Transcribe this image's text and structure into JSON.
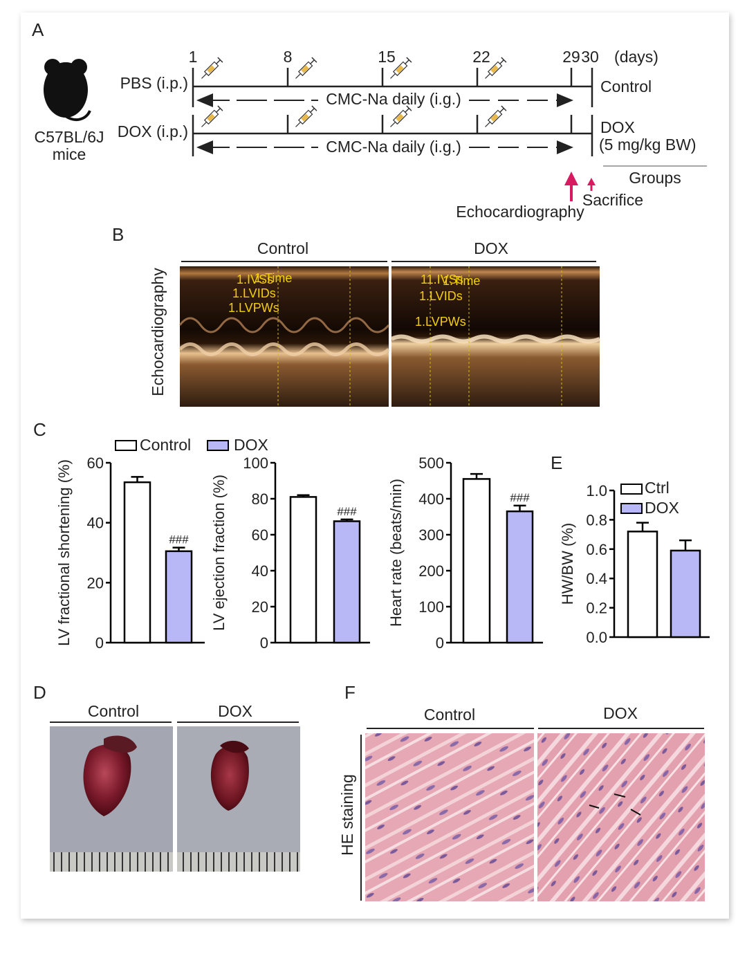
{
  "panels": {
    "a": "A",
    "b": "B",
    "c": "C",
    "d": "D",
    "e": "E",
    "f": "F"
  },
  "timeline": {
    "days": [
      "1",
      "8",
      "15",
      "22",
      "29",
      "30"
    ],
    "days_unit": "(days)",
    "mouse_label_line1": "C57BL/6J",
    "mouse_label_line2": "mice",
    "row1_treatment": "PBS (i.p.)",
    "row2_treatment": "DOX (i.p.)",
    "daily_label": "CMC-Na daily (i.g.)",
    "group_control": "Control",
    "group_dox_line1": "DOX",
    "group_dox_line2": "(5 mg/kg BW)",
    "groups_header": "Groups",
    "sacrifice_label": "Sacrifice",
    "echo_label": "Echocardiography",
    "arrow_color": "#d81b60",
    "icon": "syringe-icon"
  },
  "panel_b": {
    "col_control": "Control",
    "col_dox": "DOX",
    "row_label": "Echocardiography",
    "control_annotations": [
      "1.IVSs",
      "1.Time",
      "1.LVIDs",
      "1.LVPWs"
    ],
    "dox_annotations": [
      "11.IVSs",
      "1.Time",
      "1.LVIDs",
      "1.LVPWs"
    ],
    "annotation_color": "#f5d000"
  },
  "legend": {
    "control": "Control",
    "dox": "DOX"
  },
  "colors": {
    "control_fill": "#ffffff",
    "dox_fill": "#b9b8f7",
    "axis": "#000000"
  },
  "chart_data": [
    {
      "type": "bar",
      "ylabel": "LV fractional shortening (%)",
      "categories": [
        "Control",
        "DOX"
      ],
      "values": [
        53.5,
        30.5
      ],
      "errors": [
        1.8,
        1.2
      ],
      "ylim": [
        0,
        60
      ],
      "yticks": [
        0,
        20,
        40,
        60
      ],
      "annotations": [
        "",
        "###"
      ]
    },
    {
      "type": "bar",
      "ylabel": "LV ejection fraction (%)",
      "categories": [
        "Control",
        "DOX"
      ],
      "values": [
        81,
        67.5
      ],
      "errors": [
        1.0,
        1.0
      ],
      "ylim": [
        0,
        100
      ],
      "yticks": [
        0,
        20,
        40,
        60,
        80,
        100
      ],
      "annotations": [
        "",
        "###"
      ]
    },
    {
      "type": "bar",
      "ylabel": "Heart rate (beats/min)",
      "categories": [
        "Control",
        "DOX"
      ],
      "values": [
        455,
        365
      ],
      "errors": [
        14,
        16
      ],
      "ylim": [
        0,
        500
      ],
      "yticks": [
        0,
        100,
        200,
        300,
        400,
        500
      ],
      "annotations": [
        "",
        "###"
      ]
    },
    {
      "type": "bar",
      "ylabel": "HW/BW (%)",
      "categories": [
        "Ctrl",
        "DOX"
      ],
      "values": [
        0.72,
        0.59
      ],
      "errors": [
        0.06,
        0.07
      ],
      "ylim": [
        0,
        1.0
      ],
      "yticks": [
        "0.0",
        "0.2",
        "0.4",
        "0.6",
        "0.8",
        "1.0"
      ],
      "legend": [
        "Ctrl",
        "DOX"
      ],
      "annotations": [
        "",
        ""
      ]
    }
  ],
  "panel_d": {
    "col_control": "Control",
    "col_dox": "DOX"
  },
  "panel_f": {
    "col_control": "Control",
    "col_dox": "DOX",
    "row_label": "HE staining"
  }
}
